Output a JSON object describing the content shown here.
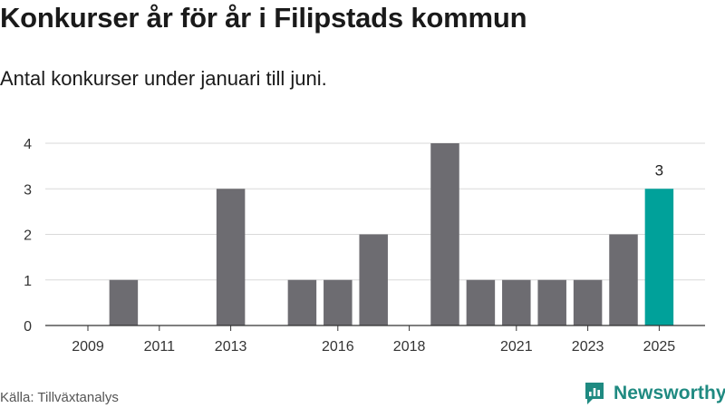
{
  "title": "Konkurser år för år i Filipstads kommun",
  "subtitle": "Antal konkurser under januari till juni.",
  "source": "Källa: Tillväxtanalys",
  "brand": "Newsworthy",
  "colors": {
    "bar": "#6d6c71",
    "highlight": "#00a19a",
    "grid": "#d9d9d9",
    "axis": "#333333",
    "brand": "#1f8a81"
  },
  "chart_data": {
    "type": "bar",
    "categories": [
      "2009",
      "2010",
      "2011",
      "2012",
      "2013",
      "2014",
      "2015",
      "2016",
      "2017",
      "2018",
      "2019",
      "2020",
      "2021",
      "2022",
      "2023",
      "2024",
      "2025"
    ],
    "values": [
      0,
      1,
      0,
      0,
      3,
      0,
      1,
      1,
      2,
      0,
      4,
      1,
      1,
      1,
      1,
      2,
      3
    ],
    "x_tick_labels": [
      "2009",
      "2011",
      "2013",
      "2016",
      "2018",
      "2021",
      "2023",
      "2025"
    ],
    "y_ticks": [
      0,
      1,
      2,
      3,
      4
    ],
    "ylim": [
      0,
      4
    ],
    "highlight": {
      "category": "2025",
      "label": "3"
    },
    "grid": true,
    "legend": false
  }
}
